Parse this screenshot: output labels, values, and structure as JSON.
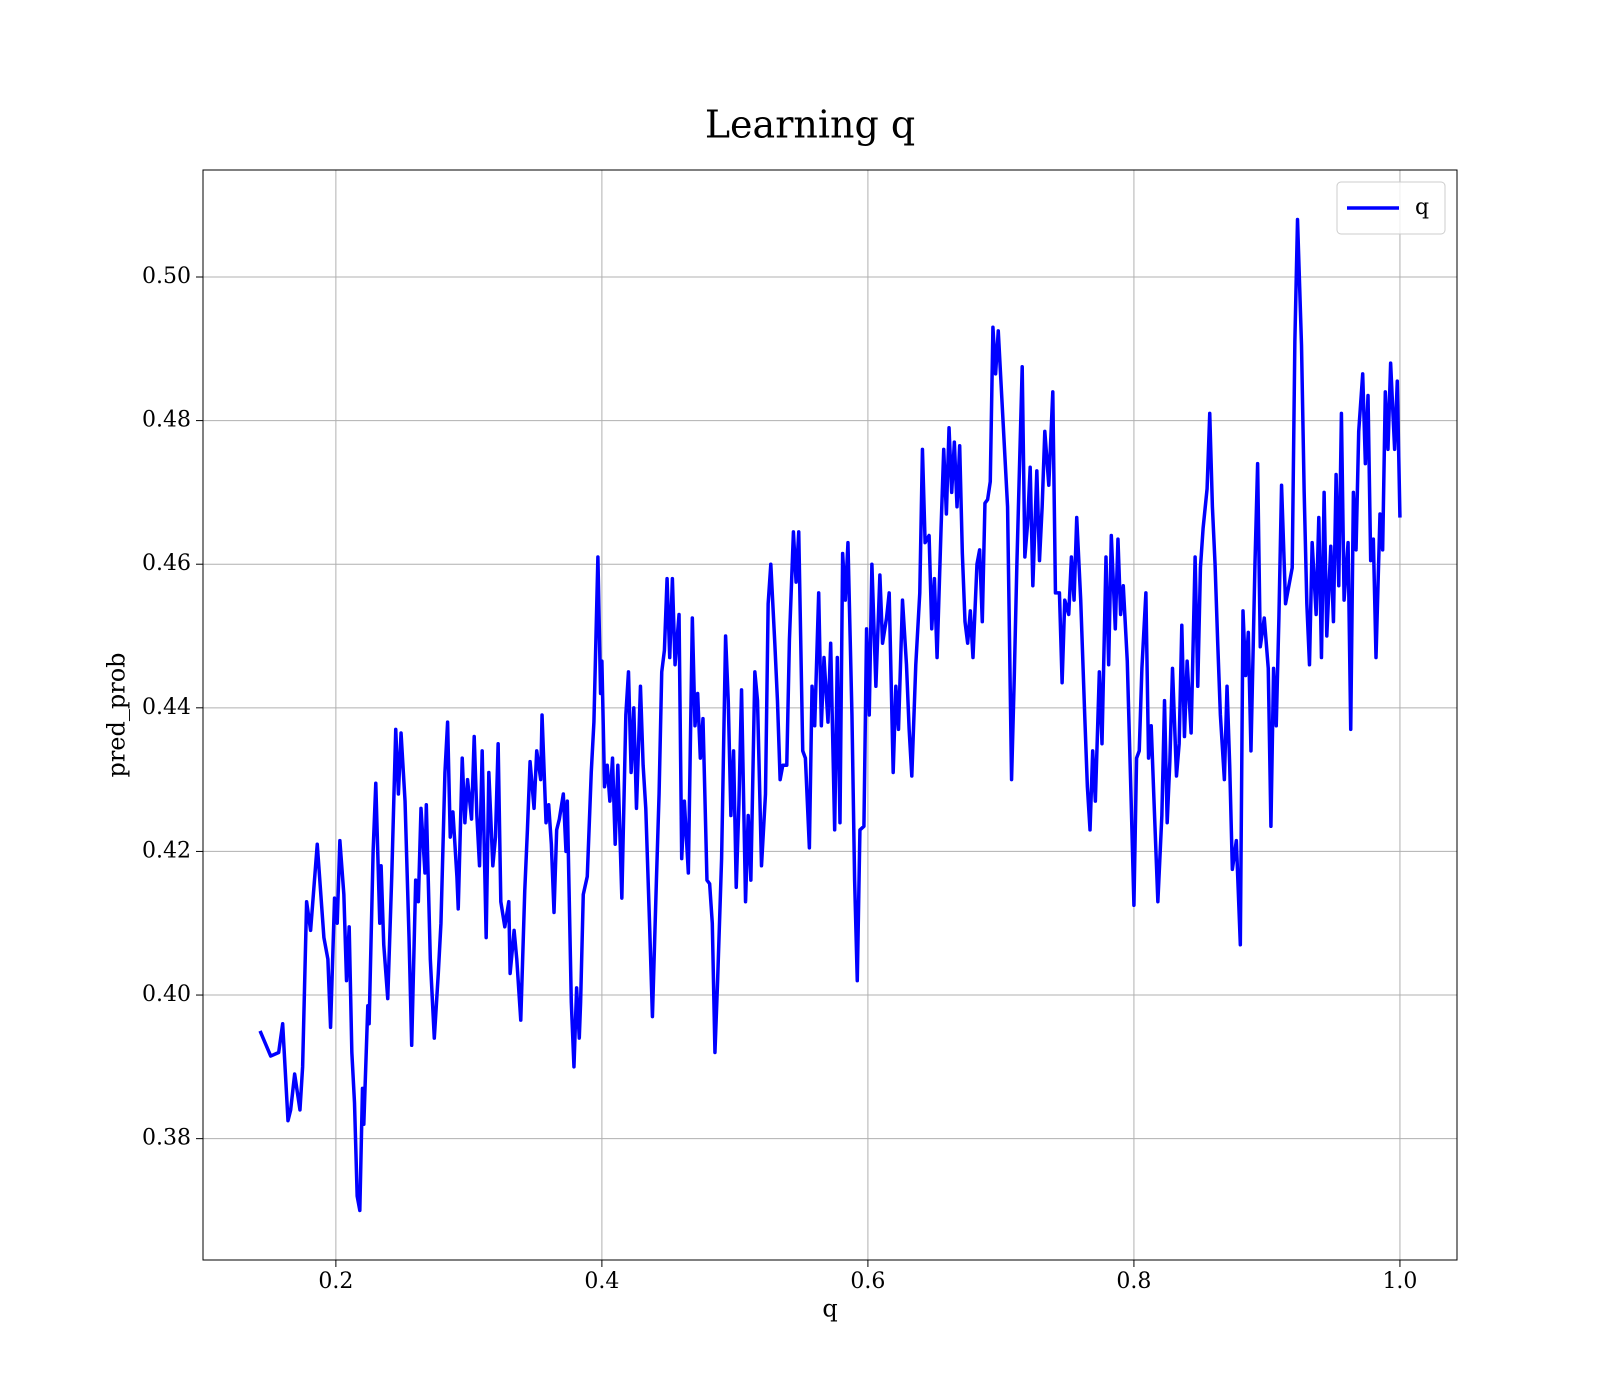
{
  "chart_data": {
    "type": "line",
    "title": "Learning q",
    "x_label": "q",
    "y_label": "pred_prob",
    "xlim": [
      0.1001,
      1.0429
    ],
    "ylim": [
      0.3631,
      0.5149
    ],
    "xticks": [
      0.2,
      0.4,
      0.6,
      0.8,
      {
        "value": 1.0,
        "label": "1.0"
      }
    ],
    "yticks": [
      0.38,
      {
        "value": 0.4,
        "label": "0.40"
      },
      0.42,
      0.44,
      0.46,
      0.48,
      {
        "value": 0.5,
        "label": "0.50"
      }
    ],
    "grid": true,
    "legend": "upper right",
    "x": [
      0.143,
      0.151,
      0.157,
      0.16,
      0.164,
      0.166,
      0.169,
      0.173,
      0.175,
      0.178,
      0.181,
      0.186,
      0.191,
      0.194,
      0.196,
      0.199,
      0.201,
      0.203,
      0.206,
      0.208,
      0.21,
      0.212,
      0.214,
      0.216,
      0.218,
      0.22,
      0.221,
      0.224,
      0.225,
      0.228,
      0.23,
      0.233,
      0.234,
      0.236,
      0.239,
      0.242,
      0.245,
      0.247,
      0.249,
      0.252,
      0.255,
      0.257,
      0.26,
      0.262,
      0.264,
      0.267,
      0.268,
      0.271,
      0.274,
      0.277,
      0.279,
      0.282,
      0.284,
      0.286,
      0.288,
      0.291,
      0.292,
      0.295,
      0.297,
      0.299,
      0.302,
      0.304,
      0.306,
      0.308,
      0.31,
      0.313,
      0.315,
      0.318,
      0.32,
      0.322,
      0.324,
      0.327,
      0.33,
      0.331,
      0.334,
      0.336,
      0.339,
      0.342,
      0.344,
      0.346,
      0.349,
      0.351,
      0.354,
      0.355,
      0.358,
      0.36,
      0.362,
      0.364,
      0.366,
      0.368,
      0.371,
      0.373,
      0.374,
      0.377,
      0.379,
      0.381,
      0.383,
      0.384,
      0.386,
      0.389,
      0.392,
      0.394,
      0.397,
      0.399,
      0.4,
      0.402,
      0.404,
      0.406,
      0.408,
      0.41,
      0.412,
      0.415,
      0.418,
      0.42,
      0.422,
      0.424,
      0.426,
      0.429,
      0.431,
      0.433,
      0.436,
      0.438,
      0.441,
      0.443,
      0.445,
      0.447,
      0.449,
      0.451,
      0.453,
      0.455,
      0.458,
      0.46,
      0.462,
      0.465,
      0.468,
      0.47,
      0.472,
      0.474,
      0.476,
      0.479,
      0.481,
      0.483,
      0.485,
      0.487,
      0.49,
      0.493,
      0.495,
      0.497,
      0.499,
      0.501,
      0.503,
      0.505,
      0.508,
      0.51,
      0.512,
      0.515,
      0.517,
      0.52,
      0.523,
      0.525,
      0.527,
      0.53,
      0.532,
      0.534,
      0.536,
      0.539,
      0.541,
      0.544,
      0.546,
      0.548,
      0.551,
      0.553,
      0.556,
      0.558,
      0.56,
      0.563,
      0.565,
      0.567,
      0.57,
      0.572,
      0.575,
      0.577,
      0.579,
      0.581,
      0.583,
      0.585,
      0.588,
      0.59,
      0.592,
      0.594,
      0.597,
      0.599,
      0.601,
      0.603,
      0.606,
      0.609,
      0.611,
      0.614,
      0.616,
      0.619,
      0.621,
      0.623,
      0.626,
      0.629,
      0.631,
      0.633,
      0.636,
      0.639,
      0.641,
      0.643,
      0.646,
      0.648,
      0.65,
      0.652,
      0.655,
      0.657,
      0.659,
      0.661,
      0.663,
      0.665,
      0.667,
      0.669,
      0.671,
      0.673,
      0.675,
      0.677,
      0.679,
      0.682,
      0.684,
      0.686,
      0.688,
      0.69,
      0.692,
      0.694,
      0.696,
      0.698,
      0.705,
      0.708,
      0.71,
      0.712,
      0.716,
      0.718,
      0.72,
      0.722,
      0.724,
      0.727,
      0.729,
      0.731,
      0.733,
      0.736,
      0.739,
      0.741,
      0.744,
      0.746,
      0.748,
      0.751,
      0.753,
      0.755,
      0.757,
      0.76,
      0.763,
      0.765,
      0.767,
      0.769,
      0.771,
      0.774,
      0.776,
      0.779,
      0.781,
      0.783,
      0.786,
      0.788,
      0.79,
      0.792,
      0.795,
      0.798,
      0.8,
      0.802,
      0.804,
      0.806,
      0.809,
      0.811,
      0.813,
      0.815,
      0.818,
      0.821,
      0.823,
      0.825,
      0.827,
      0.829,
      0.832,
      0.834,
      0.836,
      0.838,
      0.84,
      0.843,
      0.846,
      0.848,
      0.85,
      0.852,
      0.855,
      0.857,
      0.859,
      0.861,
      0.863,
      0.865,
      0.868,
      0.87,
      0.872,
      0.874,
      0.877,
      0.88,
      0.882,
      0.884,
      0.886,
      0.888,
      0.891,
      0.893,
      0.895,
      0.898,
      0.901,
      0.903,
      0.905,
      0.907,
      0.909,
      0.911,
      0.914,
      0.916,
      0.919,
      0.921,
      0.923,
      0.926,
      0.928,
      0.93,
      0.932,
      0.934,
      0.937,
      0.939,
      0.941,
      0.943,
      0.945,
      0.948,
      0.95,
      0.952,
      0.954,
      0.956,
      0.958,
      0.961,
      0.963,
      0.965,
      0.967,
      0.969,
      0.972,
      0.974,
      0.976,
      0.978,
      0.98,
      0.982,
      0.985,
      0.987,
      0.989,
      0.991,
      0.993,
      0.996,
      0.998,
      1.0
    ],
    "series": [
      {
        "name": "q",
        "color": "#0000ff",
        "values": [
          0.395,
          0.3915,
          0.392,
          0.396,
          0.3825,
          0.384,
          0.389,
          0.384,
          0.39,
          0.413,
          0.409,
          0.421,
          0.408,
          0.405,
          0.3955,
          0.4135,
          0.41,
          0.4215,
          0.414,
          0.402,
          0.4095,
          0.392,
          0.385,
          0.372,
          0.37,
          0.387,
          0.382,
          0.3985,
          0.396,
          0.42,
          0.4295,
          0.41,
          0.418,
          0.407,
          0.3995,
          0.4165,
          0.437,
          0.428,
          0.4365,
          0.427,
          0.408,
          0.393,
          0.416,
          0.413,
          0.426,
          0.417,
          0.4265,
          0.405,
          0.394,
          0.403,
          0.41,
          0.431,
          0.438,
          0.422,
          0.4255,
          0.4165,
          0.412,
          0.433,
          0.424,
          0.43,
          0.4245,
          0.436,
          0.425,
          0.418,
          0.434,
          0.408,
          0.431,
          0.418,
          0.422,
          0.435,
          0.413,
          0.4095,
          0.413,
          0.403,
          0.409,
          0.405,
          0.3965,
          0.4145,
          0.423,
          0.4325,
          0.426,
          0.434,
          0.43,
          0.439,
          0.424,
          0.4265,
          0.421,
          0.4115,
          0.423,
          0.4245,
          0.428,
          0.42,
          0.427,
          0.399,
          0.39,
          0.401,
          0.394,
          0.399,
          0.414,
          0.4165,
          0.431,
          0.438,
          0.461,
          0.442,
          0.4465,
          0.429,
          0.432,
          0.427,
          0.433,
          0.421,
          0.432,
          0.4135,
          0.439,
          0.445,
          0.431,
          0.44,
          0.426,
          0.443,
          0.432,
          0.426,
          0.409,
          0.397,
          0.416,
          0.428,
          0.445,
          0.448,
          0.458,
          0.447,
          0.458,
          0.446,
          0.453,
          0.419,
          0.427,
          0.417,
          0.4525,
          0.4375,
          0.442,
          0.433,
          0.4385,
          0.416,
          0.4155,
          0.41,
          0.392,
          0.402,
          0.419,
          0.45,
          0.441,
          0.425,
          0.434,
          0.415,
          0.4265,
          0.4425,
          0.413,
          0.425,
          0.416,
          0.445,
          0.441,
          0.418,
          0.428,
          0.4545,
          0.46,
          0.449,
          0.441,
          0.43,
          0.432,
          0.432,
          0.4495,
          0.4645,
          0.4575,
          0.4645,
          0.434,
          0.433,
          0.4205,
          0.443,
          0.4375,
          0.456,
          0.4375,
          0.447,
          0.438,
          0.449,
          0.423,
          0.447,
          0.424,
          0.4615,
          0.455,
          0.463,
          0.439,
          0.416,
          0.402,
          0.423,
          0.4235,
          0.451,
          0.439,
          0.46,
          0.443,
          0.4585,
          0.449,
          0.4525,
          0.456,
          0.431,
          0.443,
          0.437,
          0.455,
          0.446,
          0.437,
          0.4305,
          0.446,
          0.456,
          0.476,
          0.463,
          0.464,
          0.451,
          0.458,
          0.447,
          0.465,
          0.476,
          0.467,
          0.479,
          0.47,
          0.477,
          0.468,
          0.4765,
          0.4615,
          0.452,
          0.449,
          0.4535,
          0.447,
          0.46,
          0.462,
          0.452,
          0.4685,
          0.469,
          0.4715,
          0.493,
          0.4865,
          0.4925,
          0.468,
          0.43,
          0.444,
          0.46,
          0.4875,
          0.461,
          0.4655,
          0.4735,
          0.457,
          0.473,
          0.4605,
          0.468,
          0.4785,
          0.471,
          0.484,
          0.456,
          0.456,
          0.4435,
          0.455,
          0.453,
          0.461,
          0.455,
          0.4665,
          0.455,
          0.439,
          0.429,
          0.423,
          0.434,
          0.427,
          0.445,
          0.435,
          0.461,
          0.446,
          0.464,
          0.451,
          0.4635,
          0.453,
          0.457,
          0.4465,
          0.4265,
          0.4125,
          0.433,
          0.434,
          0.4455,
          0.456,
          0.433,
          0.4375,
          0.4275,
          0.413,
          0.425,
          0.441,
          0.424,
          0.4325,
          0.4455,
          0.4305,
          0.435,
          0.4515,
          0.436,
          0.4465,
          0.4365,
          0.461,
          0.443,
          0.4595,
          0.465,
          0.4705,
          0.481,
          0.468,
          0.46,
          0.449,
          0.439,
          0.43,
          0.443,
          0.432,
          0.4175,
          0.4215,
          0.407,
          0.4535,
          0.4445,
          0.4505,
          0.434,
          0.46,
          0.474,
          0.4485,
          0.4525,
          0.4455,
          0.4235,
          0.4455,
          0.4375,
          0.4525,
          0.471,
          0.4545,
          0.4565,
          0.4595,
          0.491,
          0.508,
          0.4905,
          0.47,
          0.4545,
          0.446,
          0.463,
          0.453,
          0.4665,
          0.447,
          0.47,
          0.45,
          0.4625,
          0.452,
          0.4725,
          0.457,
          0.481,
          0.455,
          0.463,
          0.437,
          0.47,
          0.462,
          0.4785,
          0.4865,
          0.474,
          0.4835,
          0.4605,
          0.4635,
          0.447,
          0.467,
          0.462,
          0.484,
          0.476,
          0.488,
          0.476,
          0.4855,
          0.4665
        ]
      }
    ]
  }
}
